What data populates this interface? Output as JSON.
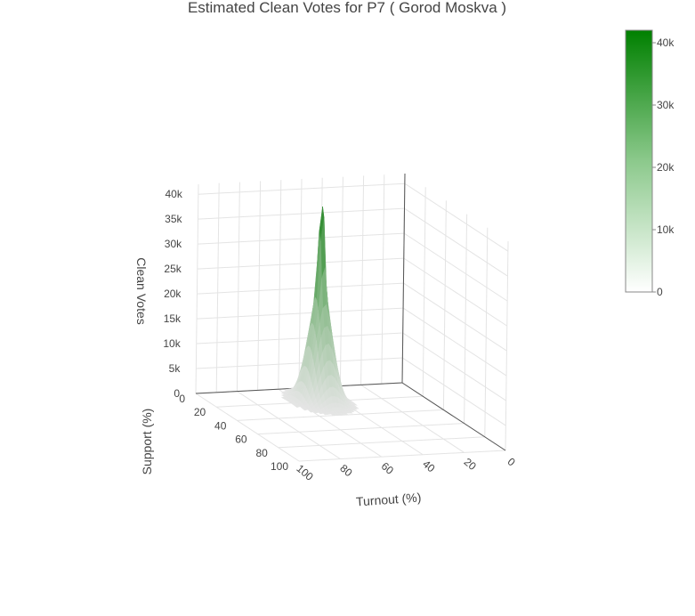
{
  "chart_data": {
    "type": "surface3d",
    "title": "Estimated Clean Votes for P7 ( Gorod Moskva )",
    "x_axis": {
      "label": "Turnout (%)",
      "ticks": [
        "0",
        "20",
        "40",
        "60",
        "80",
        "100"
      ],
      "range": [
        0,
        100
      ]
    },
    "y_axis": {
      "label": "Support (%)",
      "ticks": [
        "0",
        "20",
        "40",
        "60",
        "80",
        "100"
      ],
      "range": [
        0,
        100
      ]
    },
    "z_axis": {
      "label": "Clean Votes",
      "ticks": [
        "0",
        "5k",
        "10k",
        "15k",
        "20k",
        "25k",
        "30k",
        "35k",
        "40k"
      ],
      "range": [
        0,
        42000
      ]
    },
    "colorbar": {
      "ticks": [
        "0",
        "10k",
        "20k",
        "30k",
        "40k"
      ],
      "range": [
        0,
        42000
      ],
      "color_low": "#ffffff",
      "color_high": "#008000"
    },
    "peak": {
      "turnout": 50,
      "support": 20,
      "value": 42000
    },
    "grid": true
  }
}
